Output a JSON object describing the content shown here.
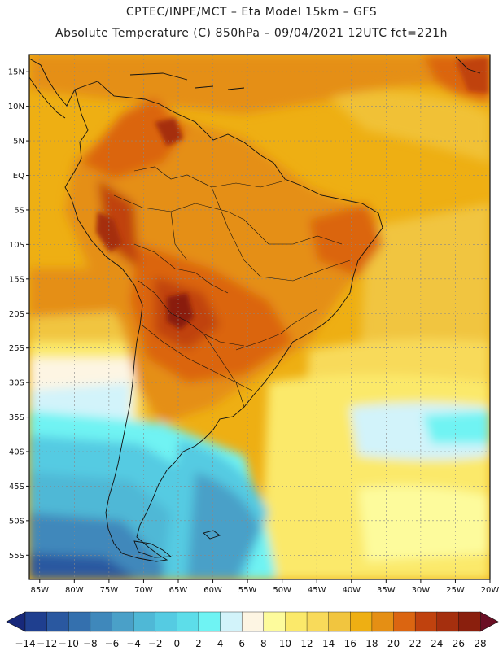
{
  "header": {
    "line1": "CPTEC/INPE/MCT –  Eta Model 15km – GFS",
    "line2": "Absolute Temperature (C) 850hPa – 09/04/2021 12UTC fct=221h"
  },
  "axes": {
    "lat_labels": [
      "15N",
      "10N",
      "5N",
      "EQ",
      "5S",
      "10S",
      "15S",
      "20S",
      "25S",
      "30S",
      "35S",
      "40S",
      "45S",
      "50S",
      "55S"
    ],
    "lat_values": [
      15,
      10,
      5,
      0,
      -5,
      -10,
      -15,
      -20,
      -25,
      -30,
      -35,
      -40,
      -45,
      -50,
      -55
    ],
    "lon_labels": [
      "85W",
      "80W",
      "75W",
      "70W",
      "65W",
      "60W",
      "55W",
      "50W",
      "45W",
      "40W",
      "35W",
      "30W",
      "25W",
      "20W"
    ],
    "lon_values": [
      -85,
      -80,
      -75,
      -70,
      -65,
      -60,
      -55,
      -50,
      -45,
      -40,
      -35,
      -30,
      -25,
      -20
    ],
    "lat_range": [
      -58.5,
      17.5
    ],
    "lon_range": [
      -86.5,
      -20
    ]
  },
  "colorbar": {
    "labels": [
      "-14",
      "-12",
      "-10",
      "-8",
      "-6",
      "-4",
      "-2",
      "0",
      "2",
      "4",
      "6",
      "8",
      "10",
      "12",
      "14",
      "16",
      "18",
      "20",
      "22",
      "24",
      "26",
      "28"
    ],
    "colors": [
      "#1f3f8f",
      "#2a58a0",
      "#3470ae",
      "#3f88bb",
      "#4aa0c8",
      "#4fb8d6",
      "#55cbe2",
      "#5ddde9",
      "#6ff3f3",
      "#d2f3fa",
      "#fdf5e3",
      "#fdfb9c",
      "#fbe96a",
      "#f8da5a",
      "#f1c53f",
      "#eeaf13",
      "#e58f14",
      "#db6511",
      "#c0420e",
      "#a52f0e",
      "#8a1f0d"
    ],
    "low_color": "#17287a",
    "high_color": "#6a0f24"
  },
  "colors": {
    "land_outline": "#111111",
    "grid": "#888888"
  }
}
